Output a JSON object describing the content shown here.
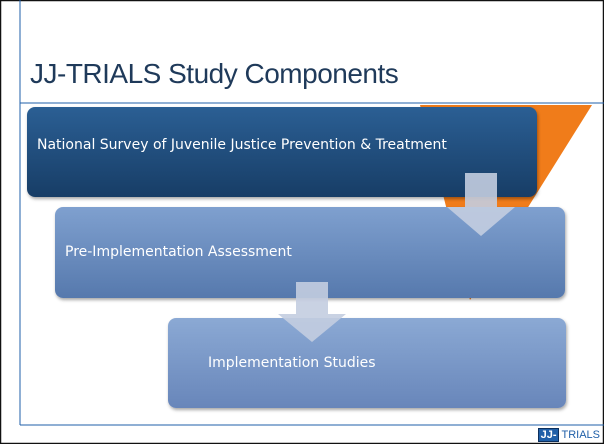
{
  "title": "JJ-TRIALS Study Components",
  "steps": [
    "National Survey of Juvenile Justice Prevention & Treatment",
    "Pre-Implementation Assessment",
    "Implementation Studies"
  ],
  "logo": {
    "mark": "JJ-",
    "text": "TRIALS"
  }
}
